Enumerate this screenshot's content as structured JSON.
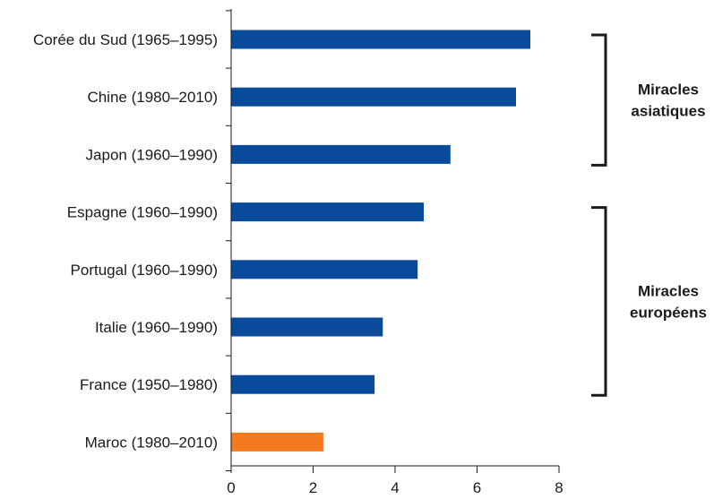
{
  "chart_data": {
    "type": "bar",
    "orientation": "horizontal",
    "categories": [
      "Corée du Sud (1965–1995)",
      "Chine (1980–2010)",
      "Japon (1960–1990)",
      "Espagne (1960–1990)",
      "Portugal (1960–1990)",
      "Italie (1960–1990)",
      "France (1950–1980)",
      "Maroc (1980–2010)"
    ],
    "values": [
      7.3,
      6.95,
      5.35,
      4.7,
      4.55,
      3.7,
      3.5,
      2.25
    ],
    "bar_colors": [
      "#0a4a9b",
      "#0a4a9b",
      "#0a4a9b",
      "#0a4a9b",
      "#0a4a9b",
      "#0a4a9b",
      "#0a4a9b",
      "#f47a20"
    ],
    "xlim": [
      0,
      8
    ],
    "x_ticks": [
      "0",
      "2",
      "4",
      "6",
      "8"
    ],
    "title": "",
    "xlabel": "",
    "ylabel": "",
    "grid": false,
    "groups": [
      {
        "label_lines": [
          "Miracles",
          "asiatiques"
        ],
        "start_index": 0,
        "end_index": 2
      },
      {
        "label_lines": [
          "Miracles",
          "européens"
        ],
        "start_index": 3,
        "end_index": 6
      }
    ]
  }
}
